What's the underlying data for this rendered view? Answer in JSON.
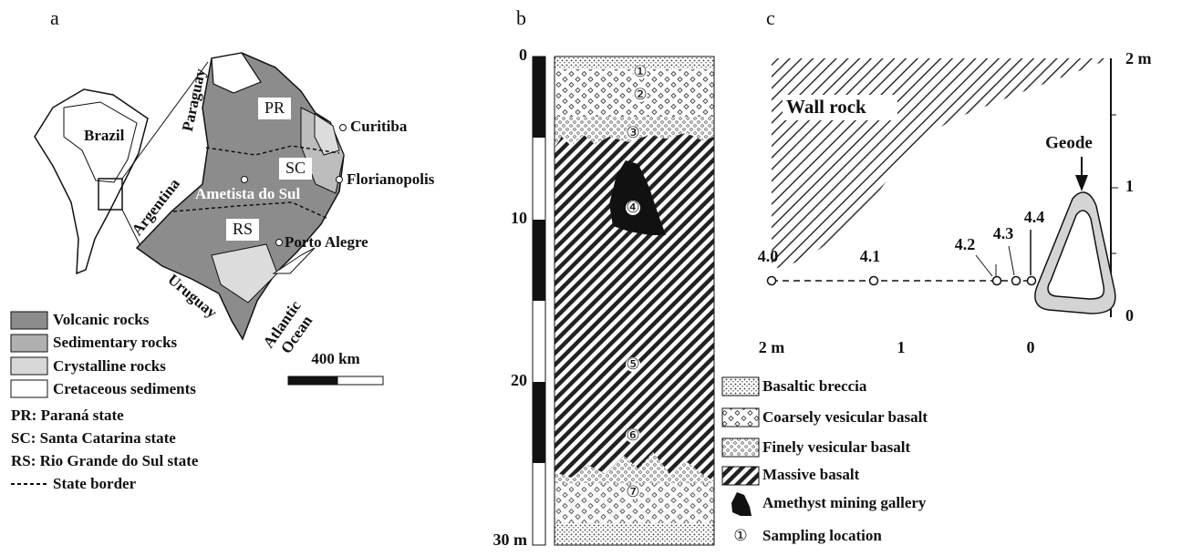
{
  "panel_a": {
    "label": "a",
    "map_labels": {
      "brazil": "Brazil",
      "paraguay": "Paraguay",
      "argentina": "Argentina",
      "uruguay": "Uruguay",
      "atlantic_ocean": "Atlantic\nOcean",
      "pr": "PR",
      "sc": "SC",
      "rs": "RS",
      "curitiba": "Curitiba",
      "florianopolis": "Florianopolis",
      "ametista": "Ametista do Sul",
      "porto_alegre": "Porto Alegre",
      "scale": "400 km"
    },
    "legend": [
      "Volcanic rocks",
      "Sedimentary rocks",
      "Crystalline rocks",
      "Cretaceous sediments",
      "PR: Paraná state",
      "SC: Santa Catarina state",
      "RS: Rio Grande do Sul state",
      "State border"
    ]
  },
  "panel_b": {
    "label": "b",
    "depth_ticks": [
      "0",
      "10",
      "20",
      "30 m"
    ],
    "samples": [
      "①",
      "②",
      "③",
      "④",
      "⑤",
      "⑥",
      "⑦"
    ],
    "legend": [
      "Basaltic breccia",
      "Coarsely vesicular basalt",
      "Finely vesicular basalt",
      "Massive basalt",
      "Amethyst mining gallery",
      "①",
      "Sampling location"
    ]
  },
  "panel_c": {
    "label": "c",
    "wall_rock": "Wall rock",
    "geode": "Geode",
    "x_ticks": [
      "2 m",
      "1",
      "0"
    ],
    "y_ticks": [
      "0",
      "1",
      "2 m"
    ],
    "points": [
      "4.0",
      "4.1",
      "4.2",
      "4.3",
      "4.4"
    ]
  }
}
